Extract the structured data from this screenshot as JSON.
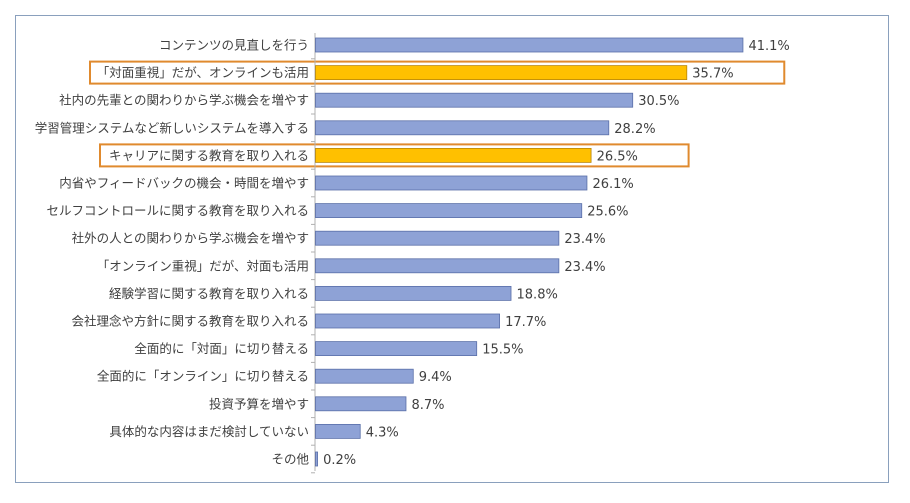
{
  "chart_data": {
    "type": "bar",
    "orientation": "horizontal",
    "categories": [
      "コンテンツの見直しを行う",
      "「対面重視」だが、オンラインも活用",
      "社内の先輩との関わりから学ぶ機会を増やす",
      "学習管理システムなど新しいシステムを導入する",
      "キャリアに関する教育を取り入れる",
      "内省やフィードバックの機会・時間を増やす",
      "セルフコントロールに関する教育を取り入れる",
      "社外の人との関わりから学ぶ機会を増やす",
      "「オンライン重視」だが、対面も活用",
      "経験学習に関する教育を取り入れる",
      "会社理念や方針に関する教育を取り入れる",
      "全面的に「対面」に切り替える",
      "全面的に「オンライン」に切り替える",
      "投資予算を増やす",
      "具体的な内容はまだ検討していない",
      "その他"
    ],
    "values": [
      41.1,
      35.7,
      30.5,
      28.2,
      26.5,
      26.1,
      25.6,
      23.4,
      23.4,
      18.8,
      17.7,
      15.5,
      9.4,
      8.7,
      4.3,
      0.2
    ],
    "value_labels": [
      "41.1%",
      "35.7%",
      "30.5%",
      "28.2%",
      "26.5%",
      "26.1%",
      "25.6%",
      "23.4%",
      "23.4%",
      "18.8%",
      "17.7%",
      "15.5%",
      "9.4%",
      "8.7%",
      "4.3%",
      "0.2%"
    ],
    "highlighted_indices": [
      1,
      4
    ],
    "colors": {
      "bar": "#8ea2d6",
      "bar_border": "#5a6fa8",
      "highlight_bar": "#ffc000",
      "highlight_bar_border": "#b8860b",
      "highlight_box": "#e08a2e",
      "axis": "#b0b0b0",
      "frame": "#8aa0bd"
    },
    "xlim": [
      0,
      45
    ],
    "grid": false,
    "legend": "none"
  }
}
